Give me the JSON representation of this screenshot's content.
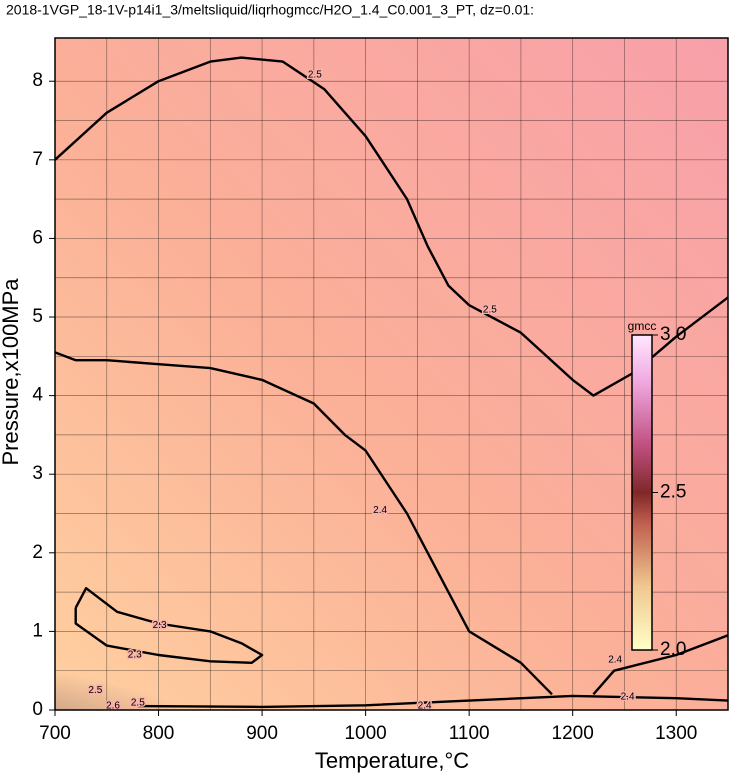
{
  "chart_data": {
    "type": "contour",
    "title": "2018-1VGP_18-1V-p14i1_3/meltsliquid/liqrhogmcc/H2O_1.4_C0.001_3_PT, dz=0.01:",
    "x_label": "Temperature,°C",
    "y_label": "Pressure,x100MPa",
    "xlim": [
      700,
      1350
    ],
    "ylim": [
      0,
      8.55
    ],
    "xticks": [
      700,
      800,
      900,
      1000,
      1100,
      1200,
      1300
    ],
    "yticks": [
      0,
      1,
      2,
      3,
      4,
      5,
      6,
      7,
      8
    ],
    "xminorticks": [
      750,
      850,
      950,
      1050,
      1150,
      1250
    ],
    "yminorticks": [
      0.5,
      1.5,
      2.5,
      3.5,
      4.5,
      5.5,
      6.5,
      7.5
    ],
    "grid": true,
    "contours": [
      {
        "x": [
          700,
          750,
          800,
          850,
          880,
          920,
          960,
          1000,
          1040,
          1060,
          1080,
          1100,
          1150,
          1200,
          1220,
          1260,
          1300,
          1350
        ],
        "y": [
          7.0,
          7.6,
          8.0,
          8.25,
          8.3,
          8.25,
          7.9,
          7.3,
          6.5,
          5.9,
          5.4,
          5.15,
          4.8,
          4.2,
          4.0,
          4.3,
          4.75,
          5.25
        ]
      },
      {
        "x": [
          700,
          720,
          750,
          800,
          850,
          900,
          950,
          980,
          1000,
          1020,
          1040,
          1060,
          1080,
          1100,
          1150,
          1180
        ],
        "y": [
          4.55,
          4.45,
          4.45,
          4.4,
          4.35,
          4.2,
          3.9,
          3.5,
          3.3,
          2.9,
          2.5,
          2.0,
          1.5,
          1.0,
          0.6,
          0.2
        ]
      },
      {
        "x": [
          1220,
          1240,
          1300,
          1350
        ],
        "y": [
          0.2,
          0.5,
          0.7,
          0.95
        ]
      },
      {
        "x": [
          780,
          900,
          1000,
          1100,
          1200,
          1300,
          1350
        ],
        "y": [
          0.05,
          0.04,
          0.06,
          0.12,
          0.18,
          0.15,
          0.12
        ]
      },
      {
        "x": [
          720,
          730,
          760,
          800,
          850,
          880,
          900,
          890,
          850,
          800,
          750,
          720,
          720
        ],
        "y": [
          1.3,
          1.55,
          1.25,
          1.1,
          1.0,
          0.85,
          0.7,
          0.6,
          0.62,
          0.7,
          0.82,
          1.1,
          1.3
        ]
      }
    ],
    "contour_labels": [
      {
        "value": 2.5,
        "x": 951,
        "y": 8.08
      },
      {
        "value": 2.5,
        "x": 1120,
        "y": 5.09
      },
      {
        "value": 2.4,
        "x": 1014,
        "y": 2.54
      },
      {
        "value": 2.4,
        "x": 1241,
        "y": 0.64
      },
      {
        "value": 2.4,
        "x": 1057,
        "y": 0.05
      },
      {
        "value": 2.4,
        "x": 1253,
        "y": 0.17
      },
      {
        "value": 2.3,
        "x": 801,
        "y": 1.08
      },
      {
        "value": 2.3,
        "x": 777,
        "y": 0.7
      },
      {
        "value": 2.5,
        "x": 739,
        "y": 0.25
      },
      {
        "value": 2.6,
        "x": 756,
        "y": 0.05
      },
      {
        "value": 2.5,
        "x": 780,
        "y": 0.09
      }
    ],
    "colorbar": {
      "label": "gmcc",
      "lim": [
        2.0,
        3.0
      ],
      "ticks": [
        {
          "value": 2.0,
          "label": "2.0"
        },
        2.5,
        {
          "value": 3.0,
          "label": "3.0"
        }
      ]
    }
  }
}
